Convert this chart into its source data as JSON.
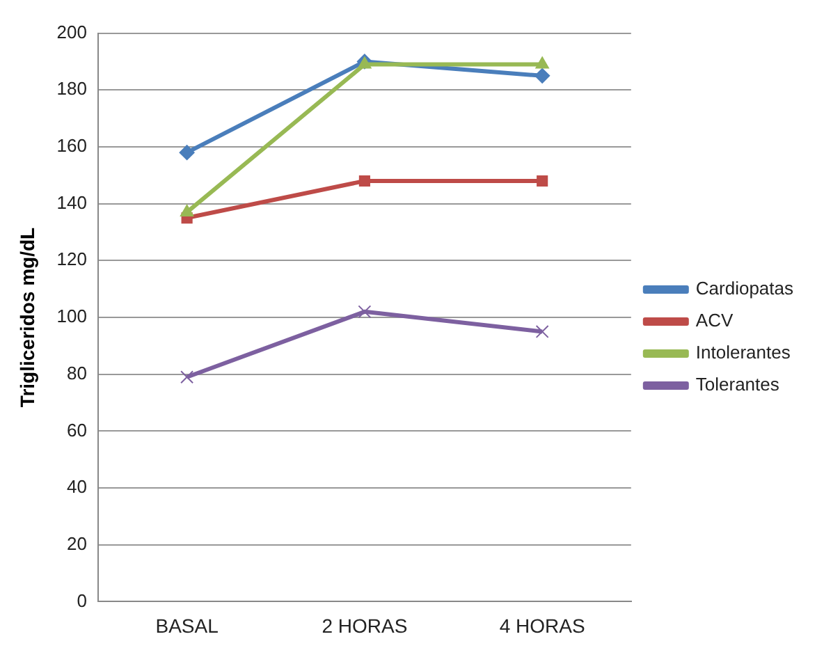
{
  "chart_data": {
    "type": "line",
    "ylabel": "Trigliceridos mg/dL",
    "categories": [
      "BASAL",
      "2 HORAS",
      "4 HORAS"
    ],
    "series": [
      {
        "name": "Cardiopatas",
        "color": "#4a7ebb",
        "marker": "diamond",
        "values": [
          158,
          190,
          185
        ]
      },
      {
        "name": "ACV",
        "color": "#be4b48",
        "marker": "square",
        "values": [
          135,
          148,
          148
        ]
      },
      {
        "name": "Intolerantes",
        "color": "#98b954",
        "marker": "triangle",
        "values": [
          137,
          189,
          189
        ]
      },
      {
        "name": "Tolerantes",
        "color": "#7d60a0",
        "marker": "cross",
        "values": [
          79,
          102,
          95
        ]
      }
    ],
    "ylim": [
      0,
      200
    ],
    "yticks": [
      0,
      20,
      40,
      60,
      80,
      100,
      120,
      140,
      160,
      180,
      200
    ],
    "grid": "y",
    "legend": "right"
  }
}
